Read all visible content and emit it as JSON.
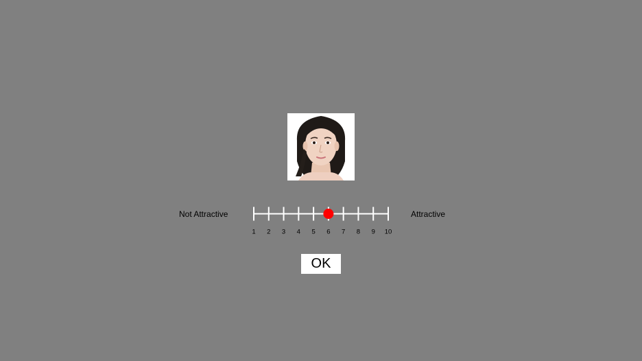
{
  "rating_scale": {
    "left_anchor": "Not Attractive",
    "right_anchor": "Attractive",
    "tick_labels": [
      "1",
      "2",
      "3",
      "4",
      "5",
      "6",
      "7",
      "8",
      "9",
      "10"
    ],
    "min": 1,
    "max": 10,
    "selected_value": 6
  },
  "ok_button": {
    "label": "OK"
  },
  "colors": {
    "background": "#808080",
    "scale_line": "#ffffff",
    "marker": "#ff0000",
    "text": "#000000"
  }
}
